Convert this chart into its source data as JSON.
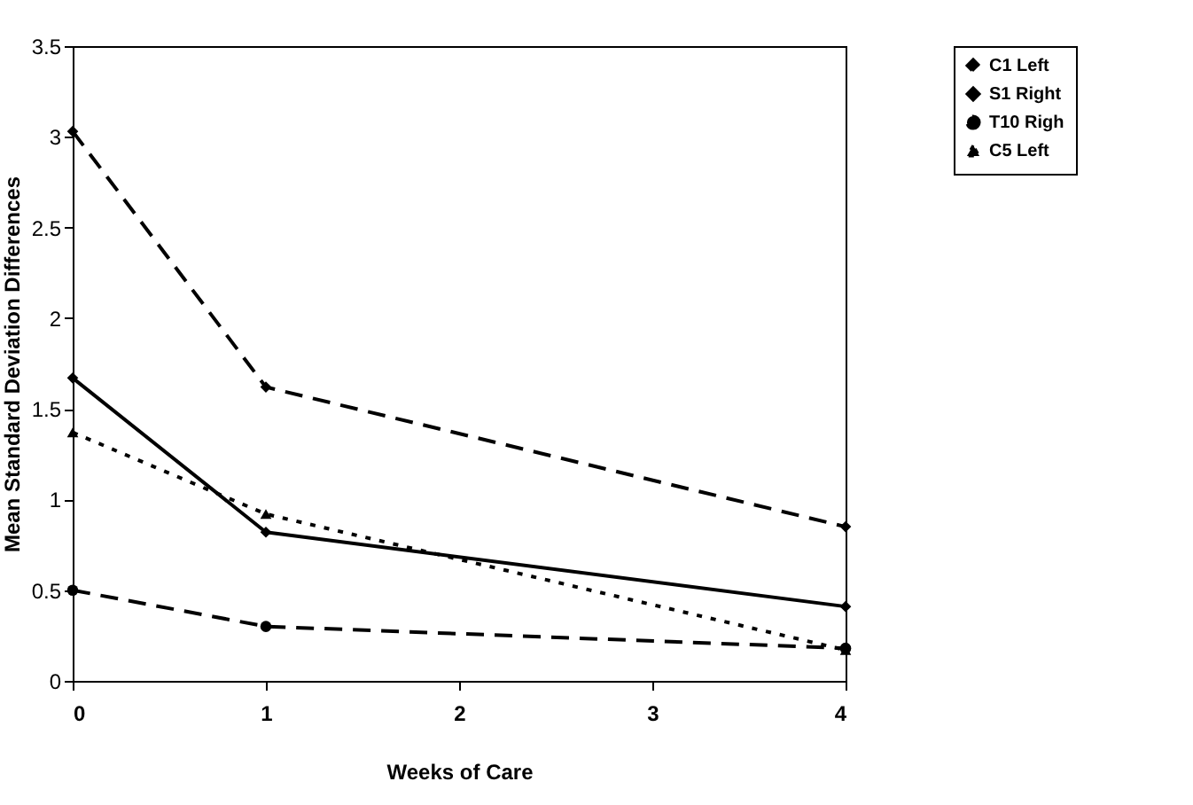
{
  "chart_data": {
    "type": "line",
    "xlabel": "Weeks of Care",
    "ylabel": "Mean Standard Deviation Differences",
    "x": [
      0,
      1,
      4
    ],
    "xlim": [
      0,
      4
    ],
    "xticks": [
      0,
      1,
      2,
      3,
      4
    ],
    "ylim": [
      0,
      3.5
    ],
    "yticks": [
      0,
      0.5,
      1,
      1.5,
      2,
      2.5,
      3,
      3.5
    ],
    "grid": false,
    "legend": "right",
    "series": [
      {
        "name": "C1 Left",
        "color": "#000000",
        "marker": "diamond",
        "line_style": "dashed",
        "values": [
          3.03,
          1.62,
          0.85
        ]
      },
      {
        "name": "S1 Right",
        "color": "#000000",
        "marker": "diamond",
        "line_style": "solid",
        "values": [
          1.67,
          0.82,
          0.41
        ]
      },
      {
        "name": "T10 Righ",
        "color": "#000000",
        "marker": "circle",
        "line_style": "dashed",
        "values": [
          0.5,
          0.3,
          0.18
        ]
      },
      {
        "name": "C5 Left",
        "color": "#000000",
        "marker": "triangle",
        "line_style": "dotted",
        "values": [
          1.37,
          0.92,
          0.17
        ]
      }
    ]
  }
}
